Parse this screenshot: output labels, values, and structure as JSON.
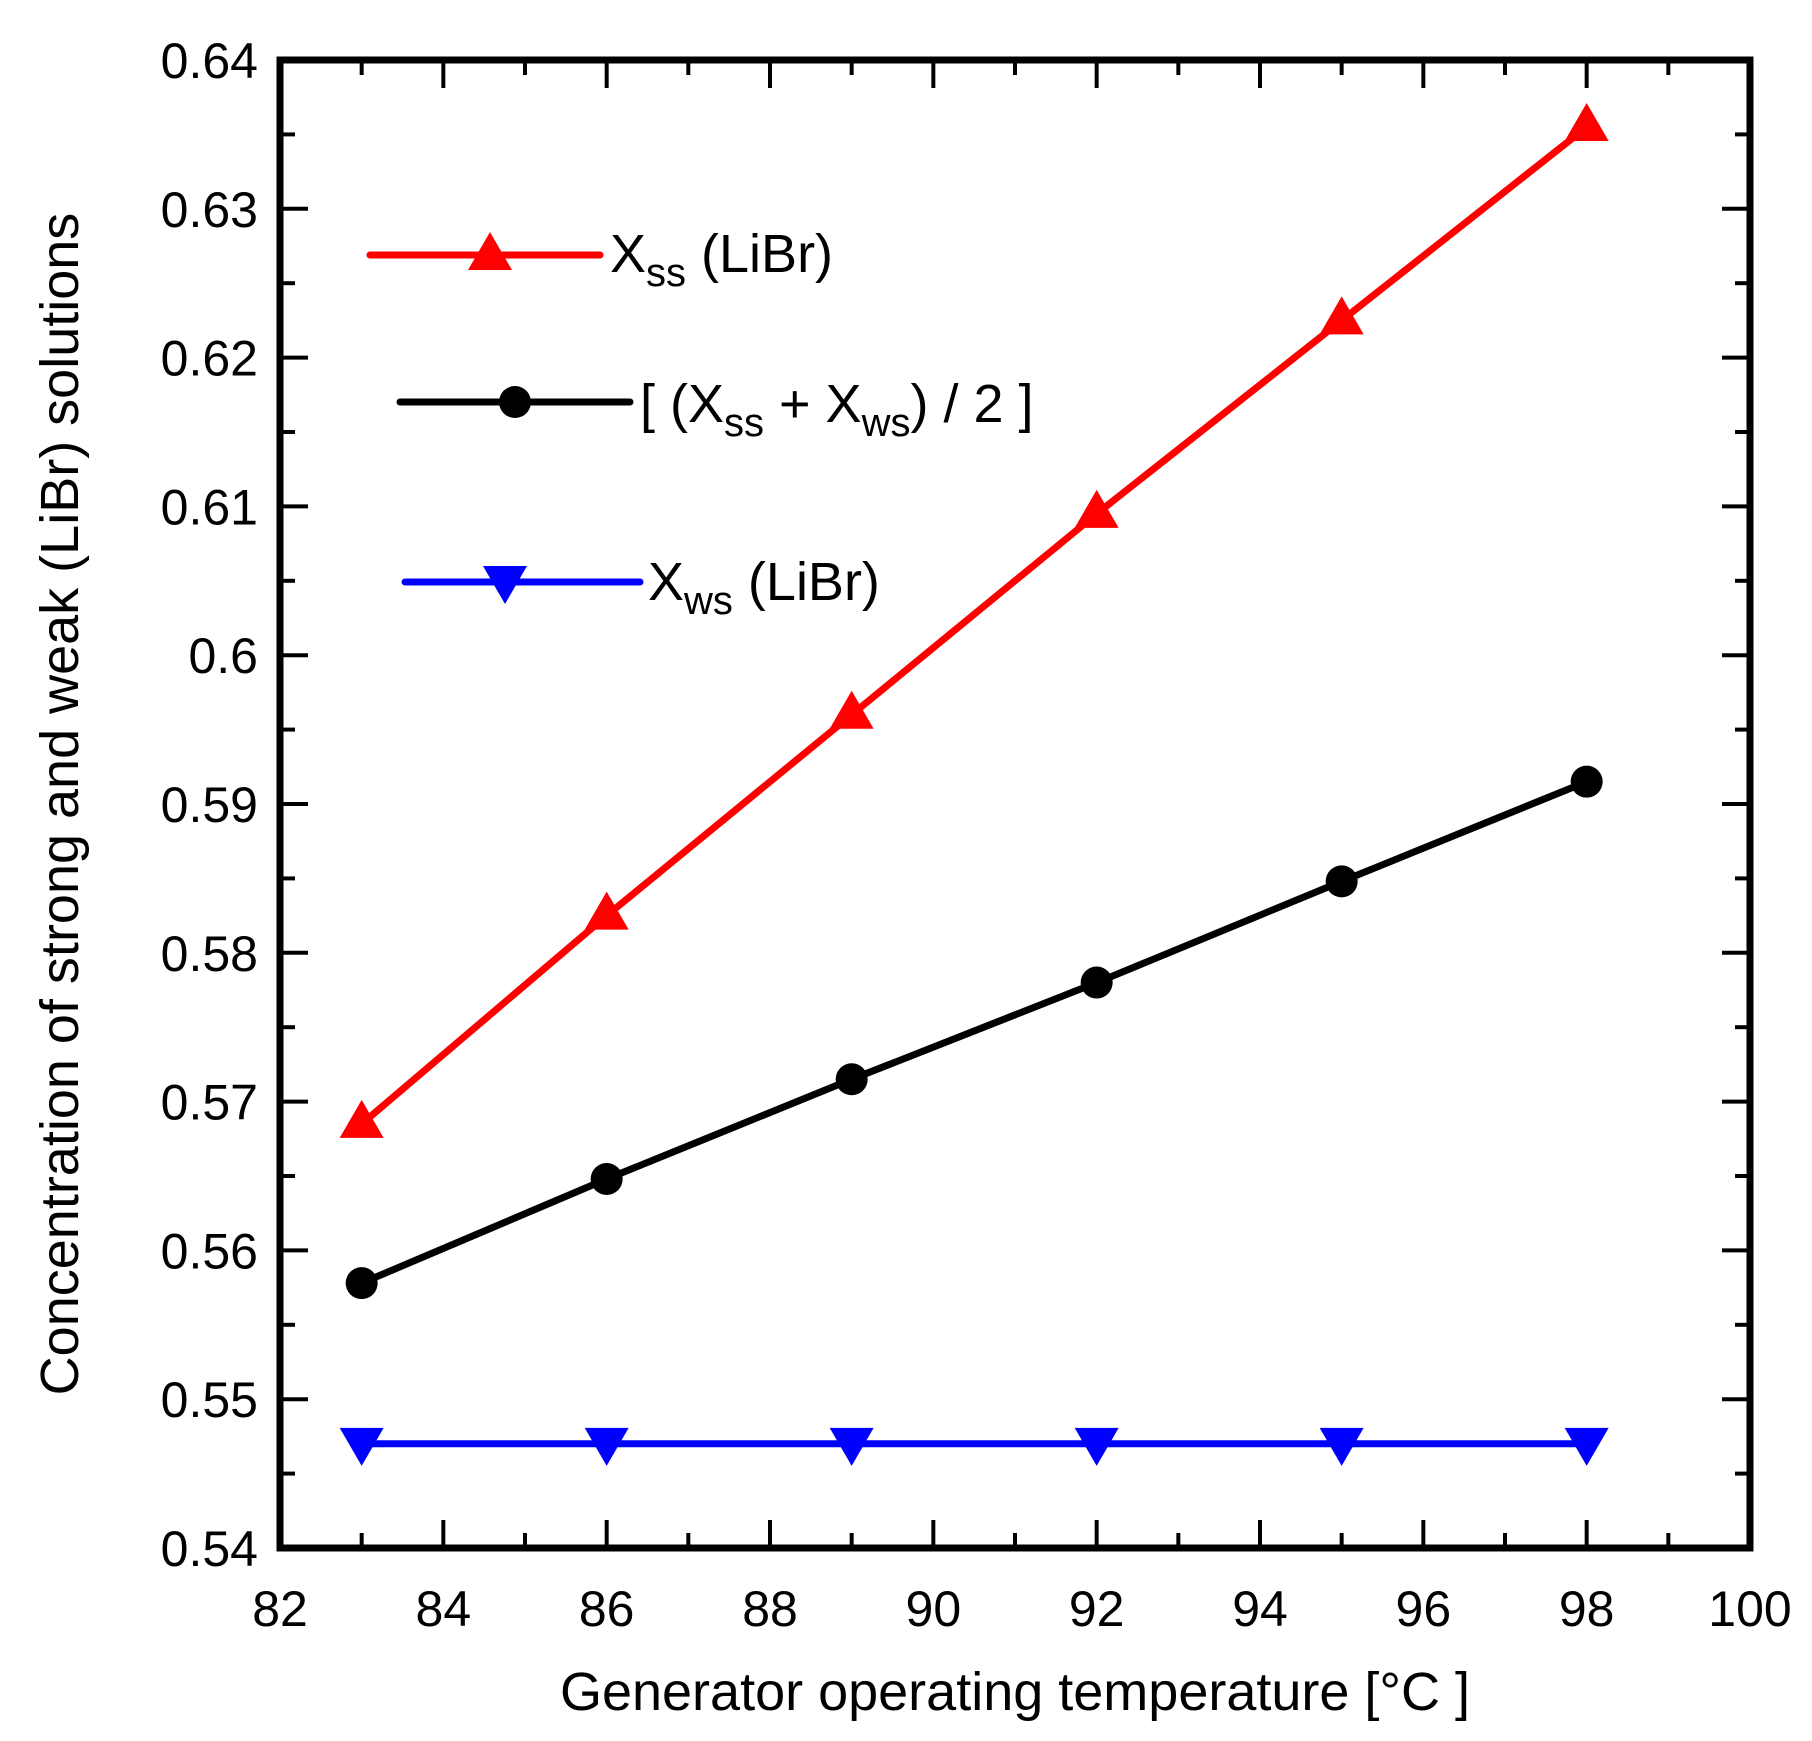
{
  "chart_data": {
    "type": "line",
    "title": "",
    "xlabel": "Generator operating temperature [°C ]",
    "ylabel": "Concentration of strong and weak (LiBr) solutions",
    "xlim": [
      82,
      100
    ],
    "ylim": [
      0.54,
      0.64
    ],
    "x_ticks": [
      82,
      84,
      86,
      88,
      90,
      92,
      94,
      96,
      98,
      100
    ],
    "x_tick_labels": [
      "82",
      "84",
      "86",
      "88",
      "90",
      "92",
      "94",
      "96",
      "98",
      "100"
    ],
    "y_ticks": [
      0.54,
      0.55,
      0.56,
      0.57,
      0.58,
      0.59,
      0.6,
      0.61,
      0.62,
      0.63,
      0.64
    ],
    "y_tick_labels": [
      "0.54",
      "0.55",
      "0.56",
      "0.57",
      "0.58",
      "0.59",
      "0.6",
      "0.61",
      "0.62",
      "0.63",
      "0.64"
    ],
    "grid": false,
    "legend_position": "top-left",
    "x": [
      83,
      86,
      89,
      92,
      95,
      98
    ],
    "series": [
      {
        "name": "Xss (LiBr)",
        "legend": {
          "main": "X",
          "sub": "ss",
          "rest": " (LiBr)"
        },
        "color": "#ff0000",
        "marker": "triangle-up",
        "values": [
          0.5685,
          0.5825,
          0.596,
          0.6095,
          0.6225,
          0.6355
        ]
      },
      {
        "name": "[ (Xss + Xws) / 2 ]",
        "legend": {
          "parts": [
            "[ (X",
            "ss",
            " + X",
            "ws",
            ") / 2 ]"
          ]
        },
        "color": "#000000",
        "marker": "circle",
        "values": [
          0.5578,
          0.5648,
          0.5715,
          0.578,
          0.5848,
          0.5915
        ]
      },
      {
        "name": "Xws (LiBr)",
        "legend": {
          "main": "X",
          "sub": "ws",
          "rest": " (LiBr)"
        },
        "color": "#0000ff",
        "marker": "triangle-down",
        "values": [
          0.547,
          0.547,
          0.547,
          0.547,
          0.547,
          0.547
        ]
      }
    ]
  }
}
